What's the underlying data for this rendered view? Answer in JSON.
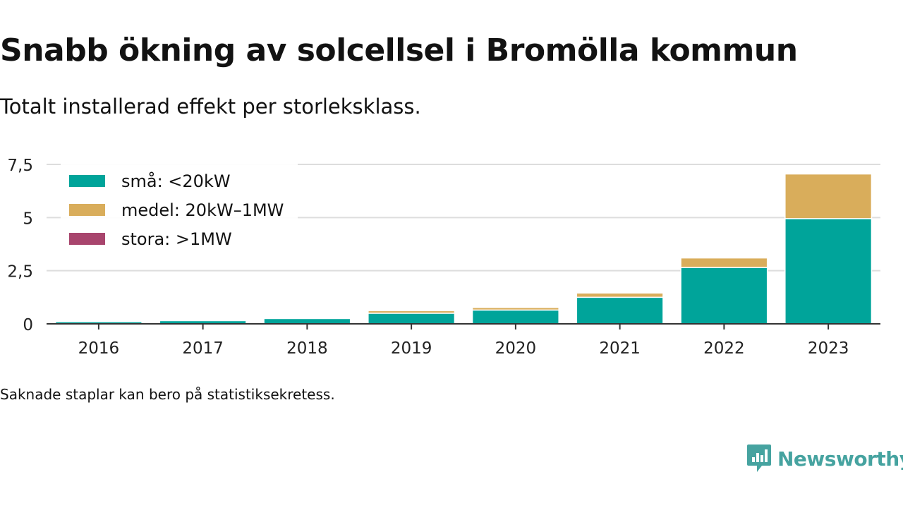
{
  "header": {
    "title": "Snabb ökning av solcellsel i Bromölla kommun",
    "subtitle": "Totalt installerad effekt per storleksklass."
  },
  "footer": {
    "note": "Saknade staplar kan bero på statistiksekretess.",
    "brand": "Newsworthy"
  },
  "colors": {
    "small": "#00a49a",
    "medium": "#d9ad5b",
    "large": "#a8456d",
    "brand": "#46a3a0"
  },
  "chart_data": {
    "type": "bar",
    "stacked": true,
    "categories": [
      "2016",
      "2017",
      "2018",
      "2019",
      "2020",
      "2021",
      "2022",
      "2023"
    ],
    "series": [
      {
        "name": "små: <20kW",
        "color": "#00a49a",
        "values": [
          0.1,
          0.15,
          0.25,
          0.5,
          0.65,
          1.25,
          2.65,
          4.95
        ]
      },
      {
        "name": "medel: 20kW–1MW",
        "color": "#d9ad5b",
        "values": [
          0.0,
          0.0,
          0.0,
          0.12,
          0.12,
          0.2,
          0.45,
          2.1
        ]
      },
      {
        "name": "stora: >1MW",
        "color": "#a8456d",
        "values": [
          0,
          0,
          0,
          0,
          0,
          0,
          0,
          0
        ]
      }
    ],
    "ylim": [
      0,
      7.5
    ],
    "yticks": [
      0,
      2.5,
      5,
      7.5
    ],
    "ytick_labels": [
      "0",
      "2,5",
      "5",
      "7,5"
    ],
    "grid": true,
    "legend_position": "top-left"
  }
}
